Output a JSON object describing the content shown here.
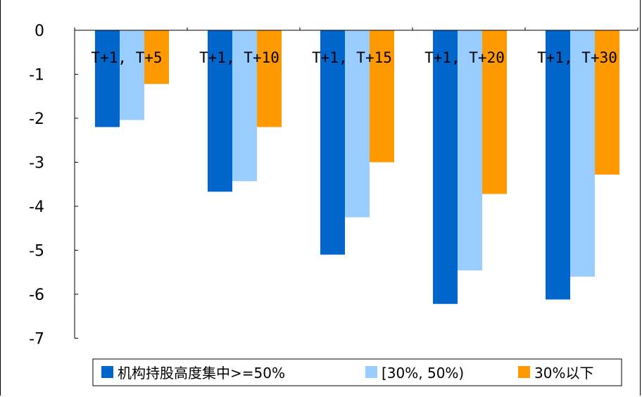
{
  "chart_data": {
    "type": "bar",
    "categories": [
      "T+1, T+5",
      "T+1, T+10",
      "T+1, T+15",
      "T+1, T+20",
      "T+1, T+30"
    ],
    "series": [
      {
        "name": "机构持股高度集中>=50%",
        "color": "#0066CC",
        "values": [
          -2.2,
          -3.67,
          -5.1,
          -6.22,
          -6.12
        ]
      },
      {
        "name": "[30%, 50%)",
        "color": "#99CCFF",
        "values": [
          -2.04,
          -3.43,
          -4.25,
          -5.46,
          -5.6
        ]
      },
      {
        "name": "30%以下",
        "color": "#FF9900",
        "values": [
          -1.22,
          -2.2,
          -3.0,
          -3.72,
          -3.28
        ]
      }
    ],
    "ylim": [
      -7,
      0
    ],
    "yticks": [
      "0",
      "-1",
      "-2",
      "-3",
      "-4",
      "-5",
      "-6",
      "-7"
    ],
    "grid": false,
    "legend_position": "bottom"
  }
}
